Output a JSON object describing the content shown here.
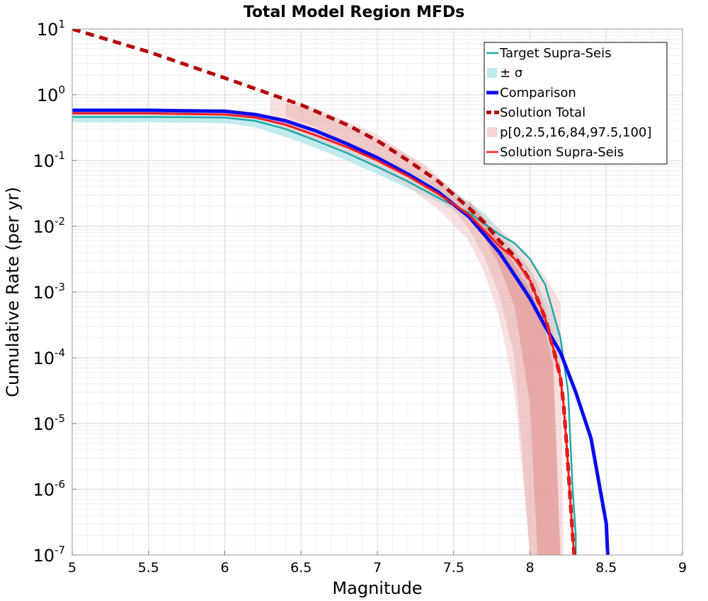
{
  "chart_data": {
    "type": "line",
    "title": "Total Model Region MFDs",
    "xlabel": "Magnitude",
    "ylabel": "Cumulative Rate (per yr)",
    "xlim": [
      5,
      9
    ],
    "ylim": [
      1e-07,
      10
    ],
    "yscale": "log",
    "grid": true,
    "legend_position": "top-right",
    "x_ticks": [
      "5",
      "5.5",
      "6",
      "6.5",
      "7",
      "7.5",
      "8",
      "8.5",
      "9"
    ],
    "y_ticks": [
      {
        "value": 1e-07,
        "base": "10",
        "exp": "-7"
      },
      {
        "value": 1e-06,
        "base": "10",
        "exp": "-6"
      },
      {
        "value": 1e-05,
        "base": "10",
        "exp": "-5"
      },
      {
        "value": 0.0001,
        "base": "10",
        "exp": "-4"
      },
      {
        "value": 0.001,
        "base": "10",
        "exp": "-3"
      },
      {
        "value": 0.01,
        "base": "10",
        "exp": "-2"
      },
      {
        "value": 0.1,
        "base": "10",
        "exp": "-1"
      },
      {
        "value": 1,
        "base": "10",
        "exp": "0"
      },
      {
        "value": 10,
        "base": "10",
        "exp": "1"
      }
    ],
    "legend": [
      {
        "label": "Target Supra-Seis",
        "color": "#20a8a8",
        "style": "line"
      },
      {
        "label": "± σ",
        "color": "#bfeaec",
        "style": "box"
      },
      {
        "label": "Comparison",
        "color": "#0a0aee",
        "style": "thick"
      },
      {
        "label": "Solution Total",
        "color": "#b30000",
        "style": "dashed"
      },
      {
        "label": "p[0,2.5,16,84,97.5,100]",
        "color": "#f4d4d4",
        "style": "box"
      },
      {
        "label": "Solution Supra-Seis",
        "color": "#ff1a1a",
        "style": "line"
      }
    ],
    "bands": [
      {
        "name": "± σ",
        "color": "#bde9ec",
        "opacity": 0.9,
        "x": [
          5.0,
          5.5,
          6.0,
          6.2,
          6.5,
          6.8,
          7.0,
          7.2,
          7.5,
          7.7,
          7.8,
          7.9,
          8.0,
          8.1,
          8.2
        ],
        "lower": [
          0.38,
          0.38,
          0.37,
          0.32,
          0.19,
          0.1,
          0.062,
          0.038,
          0.018,
          0.009,
          0.0045,
          0.0018,
          0.0007,
          0.0002,
          5e-05
        ],
        "upper": [
          0.58,
          0.58,
          0.57,
          0.51,
          0.33,
          0.18,
          0.12,
          0.075,
          0.034,
          0.016,
          0.009,
          0.0045,
          0.0022,
          0.0008,
          0.00025
        ]
      },
      {
        "name": "p 0-100",
        "color": "#f0c4c4",
        "opacity": 0.5,
        "x": [
          6.3,
          6.5,
          6.7,
          7.0,
          7.2,
          7.4,
          7.6,
          7.7,
          7.8,
          7.9,
          8.0,
          8.1,
          8.2,
          8.22
        ],
        "lower": [
          0.38,
          0.25,
          0.17,
          0.075,
          0.04,
          0.018,
          0.006,
          0.002,
          0.0004,
          3e-05,
          1e-07,
          1e-07,
          1e-07,
          1e-07
        ],
        "upper": [
          0.95,
          0.75,
          0.5,
          0.25,
          0.12,
          0.05,
          0.02,
          0.014,
          0.009,
          0.0055,
          0.0032,
          0.0017,
          0.0007,
          1e-07
        ]
      },
      {
        "name": "p 2.5-97.5",
        "color": "#eab0b0",
        "opacity": 0.5,
        "x": [
          6.4,
          6.6,
          7.0,
          7.3,
          7.5,
          7.6,
          7.7,
          7.8,
          7.9,
          8.0,
          8.05,
          8.1,
          8.15,
          8.2
        ],
        "lower": [
          0.46,
          0.32,
          0.1,
          0.04,
          0.018,
          0.009,
          0.0035,
          0.0009,
          0.0001,
          1e-07,
          1e-07,
          1e-07,
          1e-07,
          1e-07
        ],
        "upper": [
          0.75,
          0.55,
          0.22,
          0.09,
          0.035,
          0.022,
          0.012,
          0.007,
          0.004,
          0.0022,
          0.0013,
          0.0006,
          0.00025,
          1e-07
        ]
      },
      {
        "name": "p 16-84",
        "color": "#e08e8e",
        "opacity": 0.55,
        "x": [
          7.6,
          7.7,
          7.8,
          7.9,
          8.0,
          8.05,
          8.1,
          8.15,
          8.2
        ],
        "lower": [
          0.015,
          0.007,
          0.0025,
          0.0006,
          2e-05,
          1e-07,
          1e-07,
          1e-07,
          1e-07
        ],
        "upper": [
          0.025,
          0.013,
          0.006,
          0.0025,
          0.0011,
          0.0006,
          0.00025,
          8e-05,
          1e-07
        ]
      }
    ],
    "series": [
      {
        "name": "Target Supra-Seis",
        "color": "#20a8a8",
        "width": 2.5,
        "dash": "",
        "x": [
          5.0,
          5.5,
          6.0,
          6.2,
          6.4,
          6.6,
          6.8,
          7.0,
          7.2,
          7.4,
          7.6,
          7.8,
          7.9,
          8.0,
          8.1,
          8.2,
          8.25,
          8.28,
          8.3,
          8.3
        ],
        "y": [
          0.46,
          0.46,
          0.45,
          0.4,
          0.3,
          0.2,
          0.13,
          0.08,
          0.048,
          0.027,
          0.016,
          0.0075,
          0.0055,
          0.0032,
          0.0013,
          0.0002,
          3e-05,
          1e-06,
          2e-07,
          1e-07
        ]
      },
      {
        "name": "Solution Total",
        "color": "#b30000",
        "width": 5,
        "dash": "12,8",
        "x": [
          5.0,
          5.5,
          6.0,
          6.5,
          6.8,
          7.0,
          7.2,
          7.4,
          7.6,
          7.7,
          7.8,
          7.9,
          8.0,
          8.1,
          8.15,
          8.2,
          8.22,
          8.24,
          8.26,
          8.28,
          8.29
        ],
        "y": [
          10,
          4.5,
          1.8,
          0.7,
          0.35,
          0.2,
          0.1,
          0.048,
          0.019,
          0.0115,
          0.006,
          0.0035,
          0.0015,
          0.0004,
          0.00015,
          5e-05,
          2e-05,
          5e-06,
          1e-06,
          2e-07,
          1e-07
        ]
      },
      {
        "name": "Comparison",
        "color": "#0a0aee",
        "width": 5,
        "dash": "",
        "x": [
          5.0,
          5.5,
          6.0,
          6.2,
          6.4,
          6.6,
          6.8,
          7.0,
          7.2,
          7.4,
          7.6,
          7.8,
          7.9,
          8.0,
          8.1,
          8.2,
          8.3,
          8.4,
          8.5,
          8.51
        ],
        "y": [
          0.58,
          0.58,
          0.56,
          0.5,
          0.4,
          0.28,
          0.18,
          0.11,
          0.062,
          0.033,
          0.014,
          0.004,
          0.0018,
          0.0008,
          0.0003,
          0.00012,
          3e-05,
          6e-06,
          3e-07,
          1e-07
        ]
      },
      {
        "name": "Solution Supra-Seis",
        "color": "#ff1a1a",
        "width": 3,
        "dash": "",
        "x": [
          5.0,
          5.5,
          6.0,
          6.2,
          6.4,
          6.6,
          6.8,
          7.0,
          7.2,
          7.4,
          7.6,
          7.8,
          7.9,
          8.0,
          8.1,
          8.15,
          8.2,
          8.22,
          8.24,
          8.26,
          8.28,
          8.29
        ],
        "y": [
          0.52,
          0.52,
          0.5,
          0.45,
          0.35,
          0.24,
          0.16,
          0.1,
          0.058,
          0.031,
          0.015,
          0.005,
          0.0032,
          0.0015,
          0.0004,
          0.00015,
          5e-05,
          2e-05,
          5e-06,
          1e-06,
          2e-07,
          1e-07
        ]
      }
    ]
  }
}
